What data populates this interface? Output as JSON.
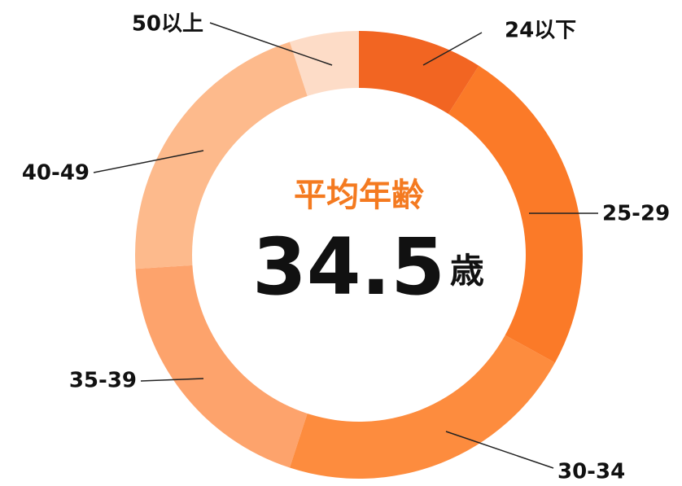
{
  "chart_data": {
    "type": "donut",
    "categories": [
      "24以下",
      "25-29",
      "30-34",
      "35-39",
      "40-49",
      "50以上"
    ],
    "values": [
      9,
      24,
      22,
      19,
      21,
      5
    ],
    "colors": [
      "#f26522",
      "#fb7a28",
      "#fd8c3e",
      "#fda36c",
      "#fdba8c",
      "#fddcc7"
    ],
    "center_title": "平均年齢",
    "center_value": "34.5",
    "center_unit": "歳"
  }
}
